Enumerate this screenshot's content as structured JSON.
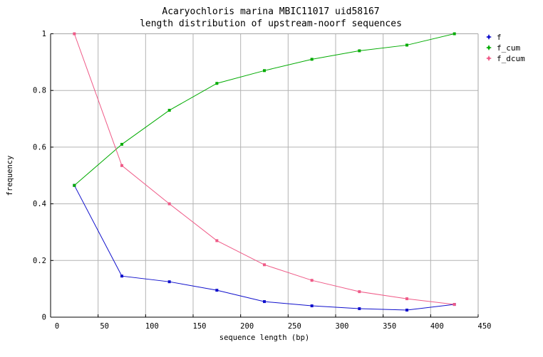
{
  "chart_data": {
    "type": "line",
    "title_line1": "Acaryochloris marina MBIC11017 uid58167",
    "title_line2": "length distribution of upstream-noorf sequences",
    "xlabel": "sequence length (bp)",
    "ylabel": "frequency",
    "xlim": [
      0,
      450
    ],
    "ylim": [
      0,
      1
    ],
    "xticks": [
      {
        "value": 0,
        "label": "0"
      },
      {
        "value": 50,
        "label": "50"
      },
      {
        "value": 100,
        "label": "100"
      },
      {
        "value": 150,
        "label": "150"
      },
      {
        "value": 200,
        "label": "200"
      },
      {
        "value": 250,
        "label": "250"
      },
      {
        "value": 300,
        "label": "300"
      },
      {
        "value": 350,
        "label": "350"
      },
      {
        "value": 400,
        "label": "400"
      },
      {
        "value": 450,
        "label": "450"
      }
    ],
    "yticks": [
      {
        "value": 0,
        "label": "0"
      },
      {
        "value": 0.2,
        "label": "0.2"
      },
      {
        "value": 0.4,
        "label": "0.4"
      },
      {
        "value": 0.6,
        "label": "0.6"
      },
      {
        "value": 0.8,
        "label": "0.8"
      },
      {
        "value": 1,
        "label": "1"
      }
    ],
    "grid": true,
    "legend_position": "outside-top-right",
    "marker": "square",
    "x": [
      25,
      75,
      125,
      175,
      225,
      275,
      325,
      375,
      425
    ],
    "series": [
      {
        "name": "f",
        "color": "#0f0fcc",
        "values": [
          0.465,
          0.145,
          0.125,
          0.095,
          0.055,
          0.04,
          0.03,
          0.025,
          0.045
        ]
      },
      {
        "name": "f_cum",
        "color": "#00ab00",
        "values": [
          0.465,
          0.61,
          0.73,
          0.825,
          0.87,
          0.91,
          0.94,
          0.96,
          1.0
        ]
      },
      {
        "name": "f_dcum",
        "color": "#ef5a87",
        "values": [
          1.0,
          0.535,
          0.4,
          0.27,
          0.185,
          0.13,
          0.09,
          0.065,
          0.045
        ]
      }
    ],
    "colors": {
      "grid": "#b3b3b3",
      "border_top_right": "#a6a6a6",
      "axis": "#000000",
      "text": "#000000",
      "background": "#ffffff"
    }
  }
}
